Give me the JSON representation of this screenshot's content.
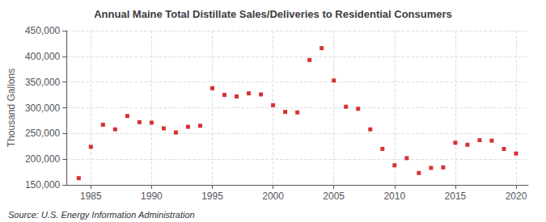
{
  "chart_data": {
    "type": "scatter",
    "title": "Annual Maine Total Distillate Sales/Deliveries to Residential Consumers",
    "ylabel": "Thousand Gallons",
    "annotations": [
      "Source: U.S. Energy Information Administration"
    ],
    "x": [
      1984,
      1985,
      1986,
      1987,
      1988,
      1989,
      1990,
      1991,
      1992,
      1993,
      1994,
      1995,
      1996,
      1997,
      1998,
      1999,
      2000,
      2001,
      2002,
      2003,
      2004,
      2005,
      2006,
      2007,
      2008,
      2009,
      2010,
      2011,
      2012,
      2013,
      2014,
      2015,
      2016,
      2017,
      2018,
      2019,
      2020
    ],
    "values": [
      163000,
      224000,
      267000,
      258000,
      284000,
      272000,
      271000,
      260000,
      252000,
      263000,
      265000,
      338000,
      325000,
      322000,
      328000,
      326000,
      305000,
      292000,
      291000,
      393000,
      416000,
      353000,
      302000,
      298000,
      258000,
      220000,
      188000,
      202000,
      173000,
      183000,
      184000,
      232000,
      228000,
      237000,
      236000,
      220000,
      211000
    ],
    "color": "#cc0000",
    "marker": "square",
    "xlim": [
      1983,
      2021
    ],
    "xticks": [
      1985,
      1990,
      1995,
      2000,
      2005,
      2010,
      2015,
      2020
    ],
    "ylim": [
      150000,
      450000
    ],
    "yticks": [
      {
        "value": 150000,
        "label": "150,000"
      },
      {
        "value": 200000,
        "label": "200,000"
      },
      {
        "value": 250000,
        "label": "250,000"
      },
      {
        "value": 300000,
        "label": "300,000"
      },
      {
        "value": 350000,
        "label": "350,000"
      },
      {
        "value": 400000,
        "label": "400,000"
      },
      {
        "value": 450000,
        "label": "450,000"
      }
    ],
    "grid": true
  }
}
